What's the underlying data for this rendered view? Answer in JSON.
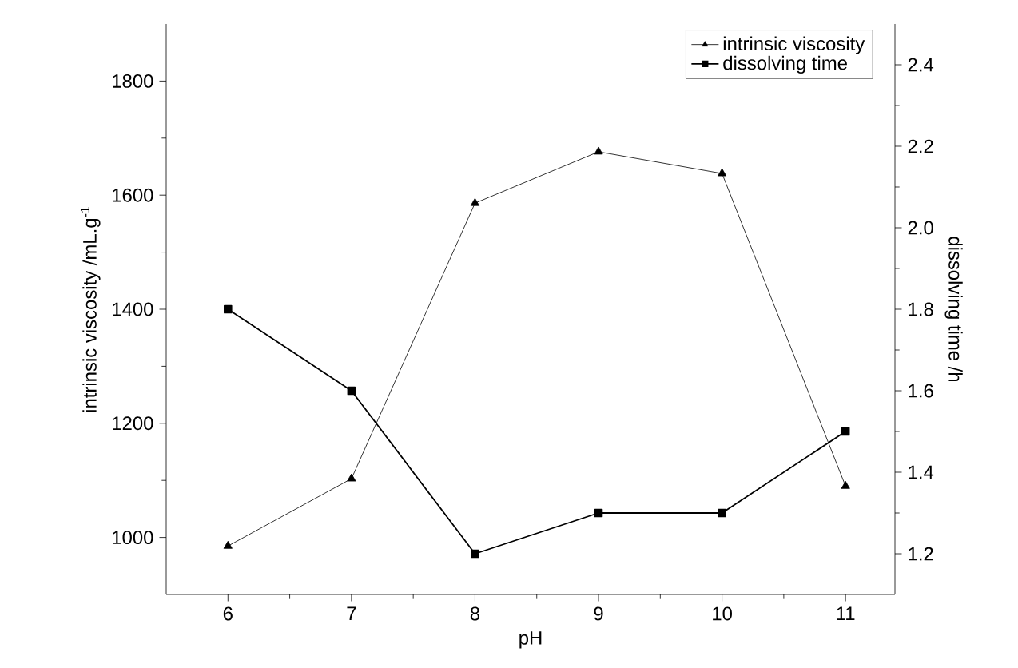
{
  "chart_data": {
    "type": "line",
    "xlabel": "pH",
    "ylabel": "intrinsic viscosity /mL.g$^{-1}$",
    "y2label": "dissolving time /h",
    "x": [
      6,
      7,
      8,
      9,
      10,
      11
    ],
    "xlim": [
      5.5,
      11.4
    ],
    "xticks": [
      6,
      7,
      8,
      9,
      10,
      11
    ],
    "ylim": [
      900,
      1900
    ],
    "yticks": [
      1000,
      1200,
      1400,
      1600,
      1800
    ],
    "y2lim": [
      1.1,
      2.5
    ],
    "y2ticks": [
      {
        "value": 1.2,
        "label": "1.2"
      },
      {
        "value": 1.4,
        "label": "1.4"
      },
      {
        "value": 1.6,
        "label": "1.6"
      },
      {
        "value": 1.8,
        "label": "1.8"
      },
      {
        "value": 2.0,
        "label": "2.0"
      },
      {
        "value": 2.2,
        "label": "2.2"
      },
      {
        "value": 2.4,
        "label": "2.4"
      }
    ],
    "legend": "top right",
    "grid": false,
    "series": [
      {
        "name": "intrinsic viscosity",
        "color": "#000000",
        "marker": "triangle",
        "values": [
          985,
          1103,
          1586,
          1676,
          1638,
          1090
        ]
      },
      {
        "name": "dissolving time",
        "color": "#000000",
        "marker": "square",
        "axis": "y2",
        "values": [
          1.8,
          1.6,
          1.2,
          1.3,
          1.3,
          1.5
        ]
      }
    ]
  }
}
